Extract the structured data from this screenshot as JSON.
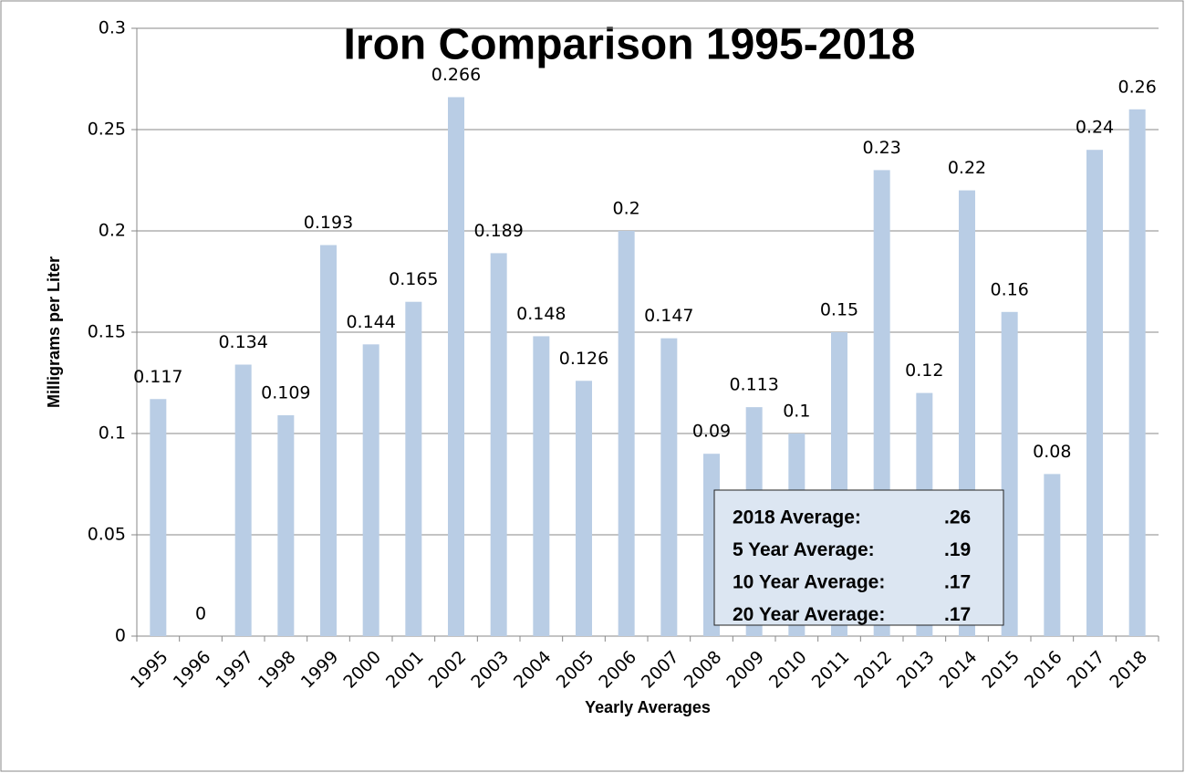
{
  "chart_data": {
    "type": "bar",
    "title": "Iron Comparison 1995-2018",
    "x_label": "Yearly Averages",
    "y_label": "Milligrams per Liter",
    "categories": [
      "1995",
      "1996",
      "1997",
      "1998",
      "1999",
      "2000",
      "2001",
      "2002",
      "2003",
      "2004",
      "2005",
      "2006",
      "2007",
      "2008",
      "2009",
      "2010",
      "2011",
      "2012",
      "2013",
      "2014",
      "2015",
      "2016",
      "2017",
      "2018"
    ],
    "values": [
      0.117,
      0,
      0.134,
      0.109,
      0.193,
      0.144,
      0.165,
      0.266,
      0.189,
      0.148,
      0.126,
      0.2,
      0.147,
      0.09,
      0.113,
      0.1,
      0.15,
      0.23,
      0.12,
      0.22,
      0.16,
      0.08,
      0.24,
      0.26
    ],
    "color": "#b9cde5",
    "ylim": [
      0,
      0.3
    ],
    "yticks": [
      0,
      0.05,
      0.1,
      0.15,
      0.2,
      0.25,
      0.3
    ],
    "grid": true,
    "annotations": [
      {
        "label": "2018 Average:",
        "value": ".26"
      },
      {
        "label": "5 Year Average:",
        "value": ".19"
      },
      {
        "label": "10 Year Average:",
        "value": ".17"
      },
      {
        "label": "20 Year Average:",
        "value": ".17"
      }
    ]
  }
}
